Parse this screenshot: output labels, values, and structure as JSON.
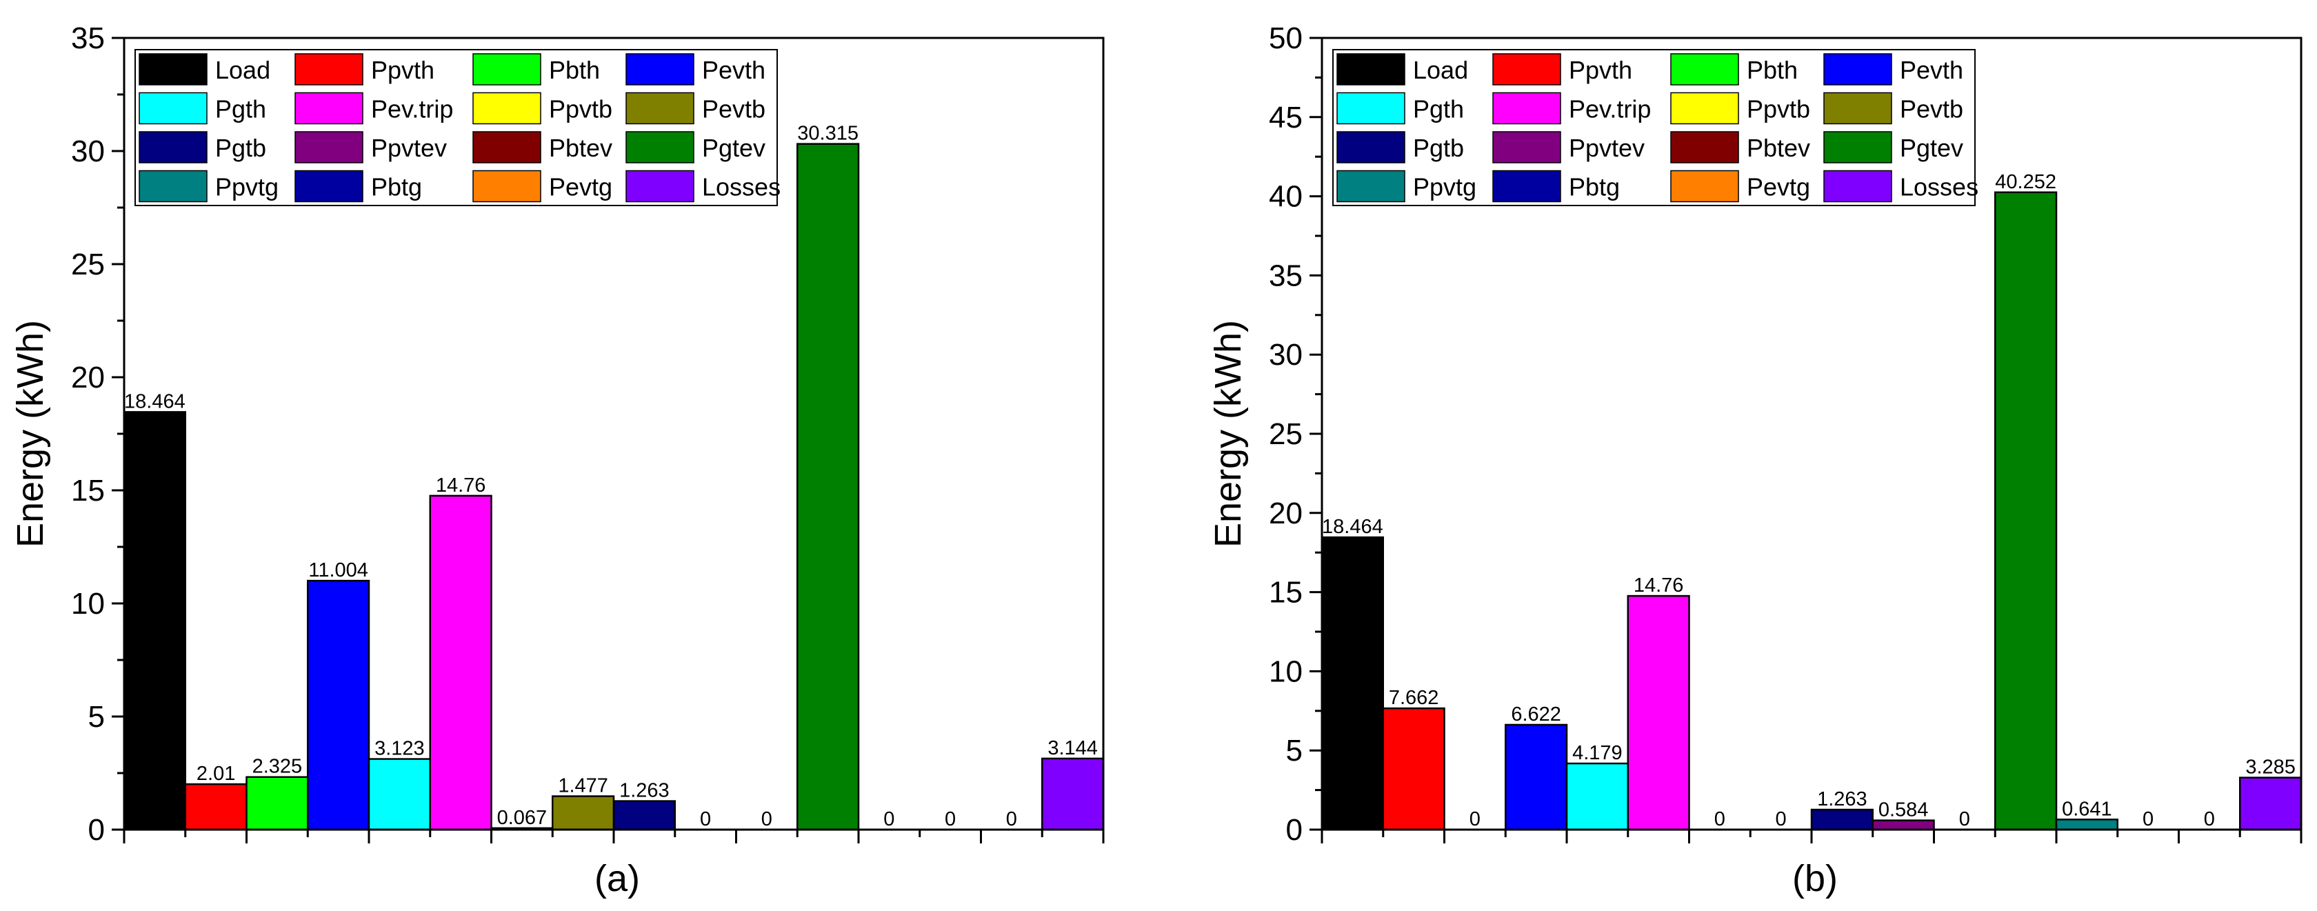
{
  "colors": {
    "Load": "#000000",
    "Ppvth": "#ff0000",
    "Pbth": "#00ff00",
    "Pevth": "#0000ff",
    "Pgth": "#00ffff",
    "Pev.trip": "#ff00ff",
    "Ppvtb": "#ffff00",
    "Pevtb": "#808000",
    "Pgtb": "#000080",
    "Ppvtev": "#800080",
    "Pbtev": "#800000",
    "Pgtev": "#008000",
    "Ppvtg": "#008080",
    "Pbtg": "#0000a0",
    "Pevtg": "#ff8000",
    "Losses": "#8000ff"
  },
  "chart_data": [
    {
      "type": "bar",
      "panel_label": "(a)",
      "title": "",
      "xlabel": "",
      "ylabel": "Energy (kWh)",
      "ylim": [
        0,
        35
      ],
      "yticks": [
        "0",
        "5",
        "10",
        "15",
        "20",
        "25",
        "30",
        "35"
      ],
      "legend_position": "top-left",
      "legend": [
        [
          "Load",
          "Ppvth",
          "Pbth",
          "Pevth"
        ],
        [
          "Pgth",
          "Pev.trip",
          "Ppvtb",
          "Pevtb"
        ],
        [
          "Pgtb",
          "Ppvtev",
          "Pbtev",
          "Pgtev"
        ],
        [
          "Ppvtg",
          "Pbtg",
          "Pevtg",
          "Losses"
        ]
      ],
      "categories": [
        "Load",
        "Ppvth",
        "Pbth",
        "Pevth",
        "Pgth",
        "Pev.trip",
        "Ppvtb",
        "Pevtb",
        "Pgtb",
        "Ppvtev",
        "Pbtev",
        "Pgtev",
        "Ppvtg",
        "Pbtg",
        "Pevtg",
        "Losses"
      ],
      "values": [
        18.464,
        2.01,
        2.325,
        11.004,
        3.123,
        14.76,
        0.067,
        1.477,
        1.263,
        0,
        0,
        30.315,
        0,
        0,
        0,
        3.144
      ],
      "labels": [
        "18.464",
        "2.01",
        "2.325",
        "11.004",
        "3.123",
        "14.76",
        "0.067",
        "1.477",
        "1.263",
        "0",
        "0",
        "30.315",
        "0",
        "0",
        "0",
        "3.144"
      ]
    },
    {
      "type": "bar",
      "panel_label": "(b)",
      "title": "",
      "xlabel": "",
      "ylabel": "Energy (kWh)",
      "ylim": [
        0,
        50
      ],
      "yticks": [
        "0",
        "5",
        "10",
        "15",
        "20",
        "25",
        "30",
        "35",
        "40",
        "45",
        "50"
      ],
      "legend_position": "top-left",
      "legend": [
        [
          "Load",
          "Ppvth",
          "Pbth",
          "Pevth"
        ],
        [
          "Pgth",
          "Pev.trip",
          "Ppvtb",
          "Pevtb"
        ],
        [
          "Pgtb",
          "Ppvtev",
          "Pbtev",
          "Pgtev"
        ],
        [
          "Ppvtg",
          "Pbtg",
          "Pevtg",
          "Losses"
        ]
      ],
      "categories": [
        "Load",
        "Ppvth",
        "Pbth",
        "Pevth",
        "Pgth",
        "Pev.trip",
        "Ppvtb",
        "Pevtb",
        "Pgtb",
        "Ppvtev",
        "Pbtev",
        "Pgtev",
        "Ppvtg",
        "Pbtg",
        "Pevtg",
        "Losses"
      ],
      "values": [
        18.464,
        7.662,
        0,
        6.622,
        4.179,
        14.76,
        0,
        0,
        1.263,
        0.584,
        0,
        40.252,
        0.641,
        0,
        0,
        3.285
      ],
      "labels": [
        "18.464",
        "7.662",
        "0",
        "6.622",
        "4.179",
        "14.76",
        "0",
        "0",
        "1.263",
        "0.584",
        "0",
        "40.252",
        "0.641",
        "0",
        "0",
        "3.285"
      ]
    }
  ]
}
